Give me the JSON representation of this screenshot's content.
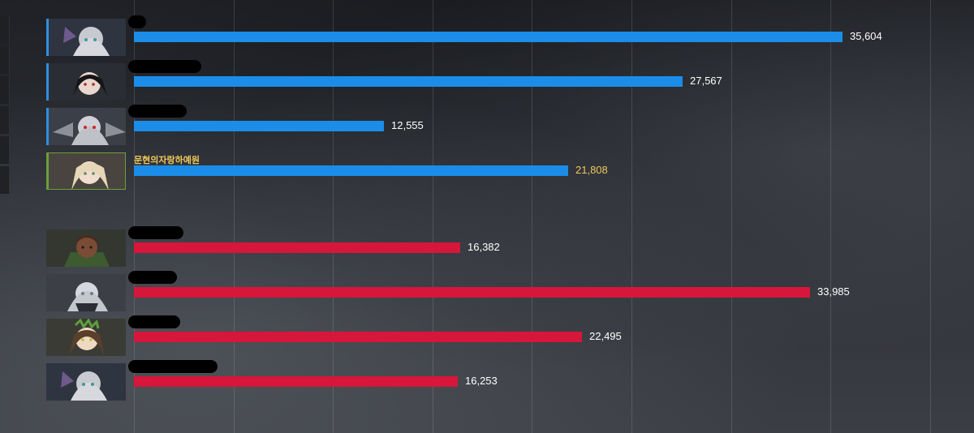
{
  "blue_team": [
    {
      "value": 35604,
      "label": "35,604",
      "name": "",
      "highlight": false
    },
    {
      "value": 27567,
      "label": "27,567",
      "name": "",
      "highlight": false
    },
    {
      "value": 12555,
      "label": "12,555",
      "name": "",
      "highlight": false
    },
    {
      "value": 21808,
      "label": "21,808",
      "name": "문현의자랑하예원",
      "highlight": true
    }
  ],
  "red_team": [
    {
      "value": 16382,
      "label": "16,382",
      "name": ""
    },
    {
      "value": 33985,
      "label": "33,985",
      "name": ""
    },
    {
      "value": 22495,
      "label": "22,495",
      "name": ""
    },
    {
      "value": 16253,
      "label": "16,253",
      "name": ""
    }
  ],
  "colors": {
    "blue_bar": "#1b8de8",
    "red_bar": "#d6163a",
    "highlight_text": "#f0c85a"
  }
}
